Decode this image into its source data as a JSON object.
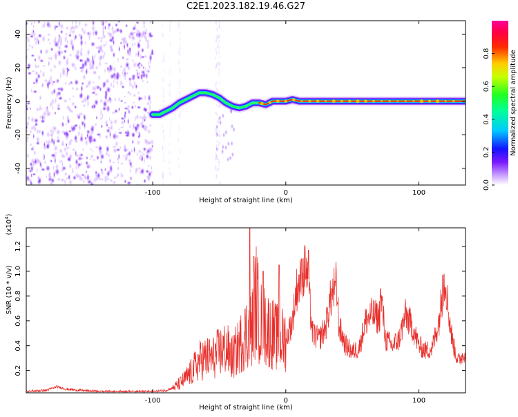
{
  "page": {
    "title": "C2E1.2023.182.19.46.G27"
  },
  "chart_data": [
    {
      "type": "heatmap",
      "title": "C2E1.2023.182.19.46.G27",
      "xlabel": "Height of straight line (km)",
      "ylabel": "Frequency (Hz)",
      "xlim": [
        -195,
        135
      ],
      "ylim": [
        -50,
        48
      ],
      "xticks": [
        -100,
        0,
        100
      ],
      "yticks": [
        -40,
        -20,
        0,
        20,
        40
      ],
      "colorbar": {
        "label": "Normalized spectral amplitude",
        "range": [
          0,
          1
        ],
        "ticks": [
          "0.0",
          "0.2",
          "0.4",
          "0.6",
          "0.8"
        ],
        "colors": [
          "#ffffff",
          "#9b2cff",
          "#2a1bff",
          "#00d8ff",
          "#22ff22",
          "#ffff00",
          "#ff0000",
          "#ff00aa"
        ]
      },
      "trace": {
        "x": [
          -100,
          -95,
          -90,
          -85,
          -80,
          -75,
          -70,
          -65,
          -60,
          -55,
          -50,
          -45,
          -40,
          -35,
          -30,
          -25,
          -20,
          -15,
          -10,
          -5,
          0,
          5,
          10,
          20,
          40,
          60,
          80,
          100,
          120,
          135
        ],
        "y": [
          -8,
          -8,
          -6,
          -4,
          -1,
          1,
          3,
          5,
          5,
          4,
          2,
          -1,
          -3,
          -4,
          -3,
          -1,
          -1,
          -2,
          0,
          0,
          0,
          1,
          0,
          0,
          0,
          0,
          0,
          0,
          0,
          0
        ]
      }
    },
    {
      "type": "line",
      "xlabel": "Height of straight line (km)",
      "ylabel": "SNR (10 * v/v)",
      "y_multiplier": "(x10",
      "y_multiplier_exp": "4",
      "y_multiplier_close": ")",
      "xlim": [
        -195,
        135
      ],
      "ylim": [
        0.02,
        1.35
      ],
      "xticks": [
        -100,
        0,
        100
      ],
      "yticks": [
        0.2,
        0.4,
        0.6,
        0.8,
        1.0,
        1.2
      ],
      "ytick_labels": [
        "0.2",
        "0.4",
        "0.6",
        "0.8",
        "1.0",
        "1.2"
      ],
      "color": "#e8302c",
      "envelope": {
        "x": [
          -195,
          -180,
          -172,
          -165,
          -155,
          -140,
          -120,
          -100,
          -90,
          -85,
          -80,
          -75,
          -70,
          -65,
          -60,
          -55,
          -50,
          -45,
          -40,
          -35,
          -30,
          -25,
          -22,
          -20,
          -15,
          -10,
          -5,
          0,
          5,
          8,
          10,
          13,
          15,
          18,
          20,
          25,
          30,
          33,
          36,
          38,
          40,
          45,
          50,
          55,
          60,
          65,
          70,
          72,
          75,
          80,
          85,
          90,
          95,
          100,
          105,
          110,
          115,
          118,
          120,
          122,
          125,
          128,
          130,
          135
        ],
        "y": [
          0.03,
          0.04,
          0.07,
          0.05,
          0.04,
          0.03,
          0.03,
          0.03,
          0.04,
          0.06,
          0.09,
          0.14,
          0.2,
          0.28,
          0.3,
          0.3,
          0.35,
          0.38,
          0.3,
          0.4,
          0.5,
          0.55,
          0.8,
          0.6,
          0.55,
          0.5,
          0.45,
          0.45,
          0.6,
          0.85,
          0.9,
          0.95,
          1.05,
          0.75,
          0.5,
          0.45,
          0.55,
          0.75,
          0.85,
          0.9,
          0.55,
          0.4,
          0.35,
          0.38,
          0.6,
          0.65,
          0.62,
          0.75,
          0.45,
          0.4,
          0.45,
          0.65,
          0.55,
          0.4,
          0.36,
          0.38,
          0.6,
          0.85,
          0.95,
          0.7,
          0.45,
          0.32,
          0.28,
          0.35
        ]
      },
      "spikes": {
        "x": [
          -27,
          -24,
          -17,
          -5,
          12,
          17,
          37,
          71,
          118
        ],
        "y": [
          1.35,
          1.12,
          1.0,
          1.05,
          1.1,
          1.17,
          0.92,
          0.86,
          0.97
        ]
      }
    }
  ]
}
